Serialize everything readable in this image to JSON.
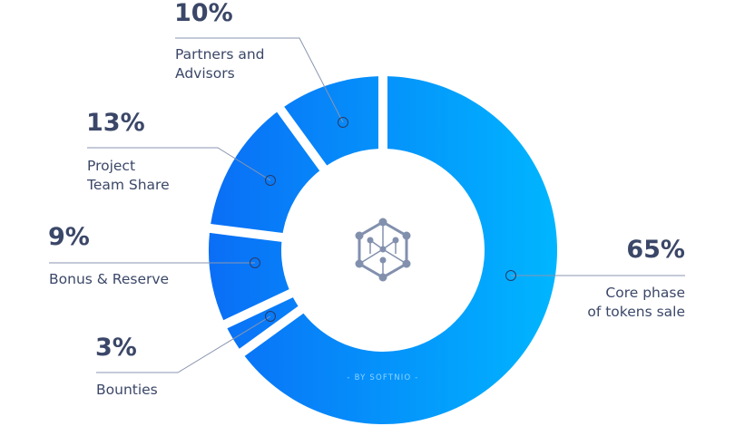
{
  "chart_data": {
    "type": "pie",
    "variant": "donut",
    "slices": [
      {
        "label_lines": [
          "Core phase",
          "of tokens sale"
        ],
        "percent_label": "65%",
        "value": 65
      },
      {
        "label_lines": [
          "Bounties"
        ],
        "percent_label": "3%",
        "value": 3
      },
      {
        "label_lines": [
          "Bonus & Reserve"
        ],
        "percent_label": "9%",
        "value": 9
      },
      {
        "label_lines": [
          "Project",
          "Team Share"
        ],
        "percent_label": "13%",
        "value": 13
      },
      {
        "label_lines": [
          "Partners and",
          "Advisors"
        ],
        "percent_label": "10%",
        "value": 10
      }
    ],
    "center_icon": "hexagon-network-icon",
    "watermark": "- BY SOFTNIO -",
    "colors": {
      "gradient_start": "#0a6ef6",
      "gradient_end": "#00b6ff",
      "text": "#3b4768",
      "leader": "#8a96b0",
      "icon": "#8290ae"
    }
  }
}
